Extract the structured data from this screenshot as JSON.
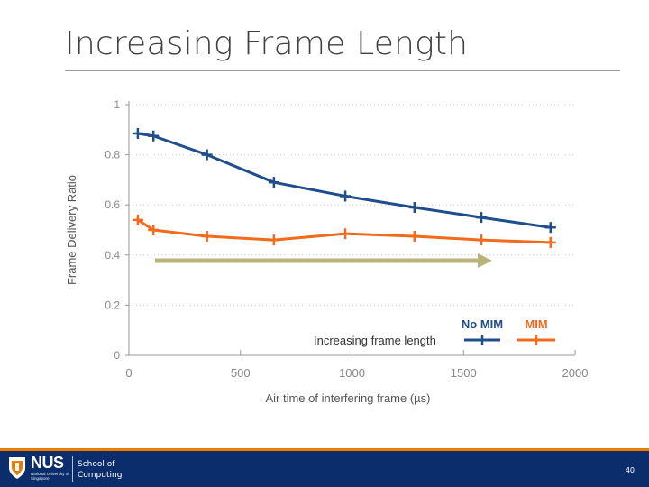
{
  "slide": {
    "title": "Increasing Frame Length",
    "page_number": "40"
  },
  "footer": {
    "logo_text": "NUS",
    "logo_sub": "National University of Singapore",
    "school_line1": "School of",
    "school_line2": "Computing"
  },
  "colors": {
    "no_mim": "#1f4e8c",
    "mim": "#f26a1b",
    "arrow": "#b9b47a",
    "footer_bg": "#0b2d6b",
    "footer_accent": "#ef7c00"
  },
  "chart_data": {
    "type": "line",
    "xlabel": "Air time of interfering frame (µs)",
    "ylabel": "Frame Delivery Ratio",
    "xlim": [
      0,
      2000
    ],
    "ylim": [
      0,
      1
    ],
    "x_ticks": [
      "0",
      "500",
      "1000",
      "1500",
      "2000"
    ],
    "y_ticks": [
      "0",
      "0.2",
      "0.4",
      "0.6",
      "0.8",
      "1"
    ],
    "grid": "horizontal-dotted",
    "legend": {
      "placement": "bottom-right"
    },
    "annotation": "Increasing frame length",
    "series": [
      {
        "name": "No MIM",
        "x": [
          40,
          110,
          350,
          650,
          970,
          1280,
          1580,
          1890
        ],
        "y": [
          0.885,
          0.875,
          0.8,
          0.69,
          0.635,
          0.59,
          0.55,
          0.51
        ]
      },
      {
        "name": "MIM",
        "x": [
          40,
          110,
          350,
          650,
          970,
          1280,
          1580,
          1890
        ],
        "y": [
          0.54,
          0.5,
          0.475,
          0.46,
          0.485,
          0.475,
          0.46,
          0.45
        ]
      }
    ]
  }
}
